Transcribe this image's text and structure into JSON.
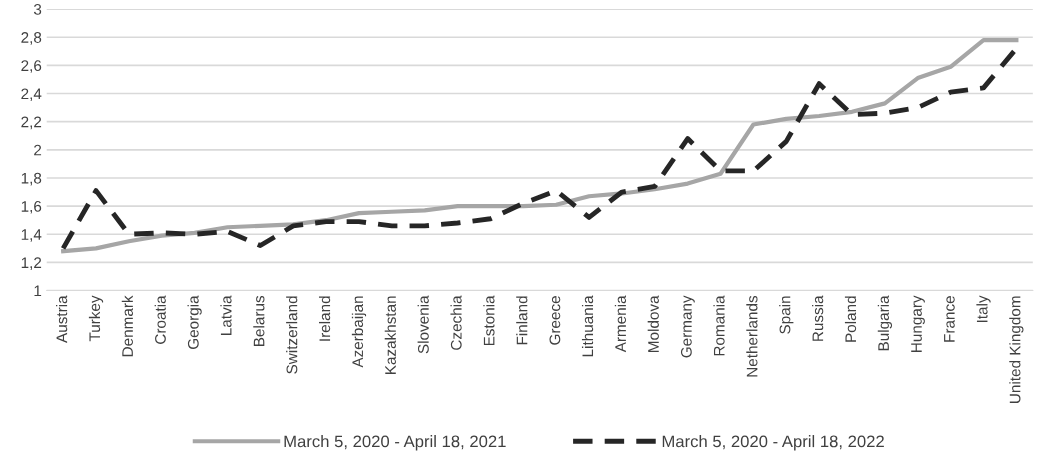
{
  "chart_data": {
    "type": "line",
    "categories": [
      "Austria",
      "Turkey",
      "Denmark",
      "Croatia",
      "Georgia",
      "Latvia",
      "Belarus",
      "Switzerland",
      "Ireland",
      "Azerbaijan",
      "Kazakhstan",
      "Slovenia",
      "Czechia",
      "Estonia",
      "Finland",
      "Greece",
      "Lithuania",
      "Armenia",
      "Moldova",
      "Germany",
      "Romania",
      "Netherlands",
      "Spain",
      "Russia",
      "Poland",
      "Bulgaria",
      "Hungary",
      "France",
      "Italy",
      "United Kingdom"
    ],
    "series": [
      {
        "name": "March 5, 2020 - April 18, 2021",
        "color": "#a6a6a6",
        "line_style": "solid",
        "values": [
          1.28,
          1.3,
          1.35,
          1.39,
          1.41,
          1.45,
          1.46,
          1.47,
          1.5,
          1.55,
          1.56,
          1.57,
          1.6,
          1.6,
          1.6,
          1.61,
          1.67,
          1.69,
          1.72,
          1.76,
          1.83,
          2.18,
          2.22,
          2.24,
          2.27,
          2.33,
          2.51,
          2.59,
          2.78,
          2.78
        ]
      },
      {
        "name": "March 5, 2020 - April 18, 2022",
        "color": "#262626",
        "line_style": "dashed",
        "values": [
          1.3,
          1.71,
          1.4,
          1.41,
          1.4,
          1.42,
          1.32,
          1.46,
          1.49,
          1.49,
          1.46,
          1.46,
          1.48,
          1.51,
          1.62,
          1.71,
          1.52,
          1.7,
          1.74,
          2.08,
          1.85,
          1.85,
          2.06,
          2.47,
          2.25,
          2.26,
          2.3,
          2.41,
          2.44,
          2.72
        ]
      }
    ],
    "ylim": [
      1,
      3
    ],
    "yticks": [
      1,
      {
        "value": 1.2,
        "label": "1,2"
      },
      {
        "value": 1.4,
        "label": "1,4"
      },
      {
        "value": 1.6,
        "label": "1,6"
      },
      {
        "value": 1.8,
        "label": "1,8"
      },
      2,
      {
        "value": 2.2,
        "label": "2,2"
      },
      {
        "value": 2.4,
        "label": "2,4"
      },
      {
        "value": 2.6,
        "label": "2,6"
      },
      {
        "value": 2.8,
        "label": "2,8"
      },
      3
    ],
    "grid": "y",
    "legend": "bottom",
    "marker": "none"
  }
}
